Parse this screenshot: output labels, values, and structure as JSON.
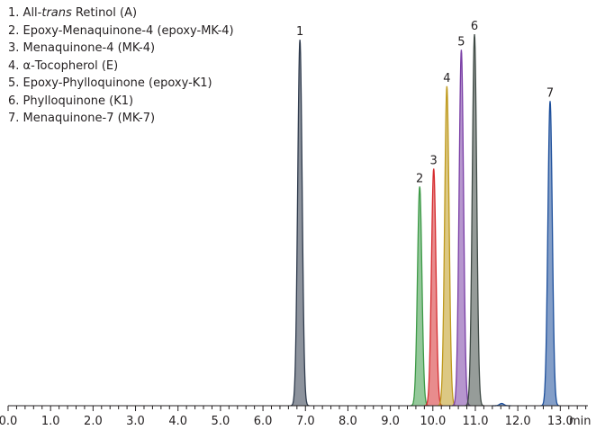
{
  "legend": [
    {
      "num": "1.",
      "pre": "All-",
      "italic": "trans",
      "post": " Retinol (A)"
    },
    {
      "num": "2.",
      "pre": "Epoxy-Menaquinone-4 (epoxy-MK-4)",
      "italic": "",
      "post": ""
    },
    {
      "num": "3.",
      "pre": "Menaquinone-4 (MK-4)",
      "italic": "",
      "post": ""
    },
    {
      "num": "4.",
      "pre": "α-Tocopherol (E)",
      "italic": "",
      "post": ""
    },
    {
      "num": "5.",
      "pre": "Epoxy-Phylloquinone (epoxy-K1)",
      "italic": "",
      "post": ""
    },
    {
      "num": "6.",
      "pre": "Phylloquinone (K1)",
      "italic": "",
      "post": ""
    },
    {
      "num": "7.",
      "pre": "Menaquinone-7 (MK-7)",
      "italic": "",
      "post": ""
    }
  ],
  "chart_data": {
    "type": "line",
    "xlabel": "min",
    "xlim": [
      0.0,
      13.65
    ],
    "x_ticks": [
      "0.0",
      "1.0",
      "2.0",
      "3.0",
      "4.0",
      "5.0",
      "6.0",
      "7.0",
      "8.0",
      "9.0",
      "10.0",
      "11.0",
      "12.0",
      "13.0"
    ],
    "x_minor_step": 0.2,
    "ylim": [
      0,
      1.0
    ],
    "y_axis_visible": false,
    "grid": false,
    "series": [
      {
        "label": "1",
        "retention_time": 6.87,
        "height": 0.985,
        "color": "#2f3b4d"
      },
      {
        "label": "2",
        "retention_time": 9.69,
        "height": 0.59,
        "color": "#3d9a47"
      },
      {
        "label": "3",
        "retention_time": 10.02,
        "height": 0.638,
        "color": "#d62d30"
      },
      {
        "label": "4",
        "retention_time": 10.33,
        "height": 0.86,
        "color": "#bf9a1e"
      },
      {
        "label": "5",
        "retention_time": 10.67,
        "height": 0.958,
        "color": "#7a3fa6"
      },
      {
        "label": "6",
        "retention_time": 10.98,
        "height": 1.0,
        "color": "#3f4a45"
      },
      {
        "label": "7",
        "retention_time": 12.76,
        "height": 0.82,
        "color": "#1d4f9b"
      }
    ],
    "minor_peaks": [
      {
        "retention_time": 11.62,
        "height": 0.006,
        "color": "#1d4f9b"
      }
    ]
  }
}
